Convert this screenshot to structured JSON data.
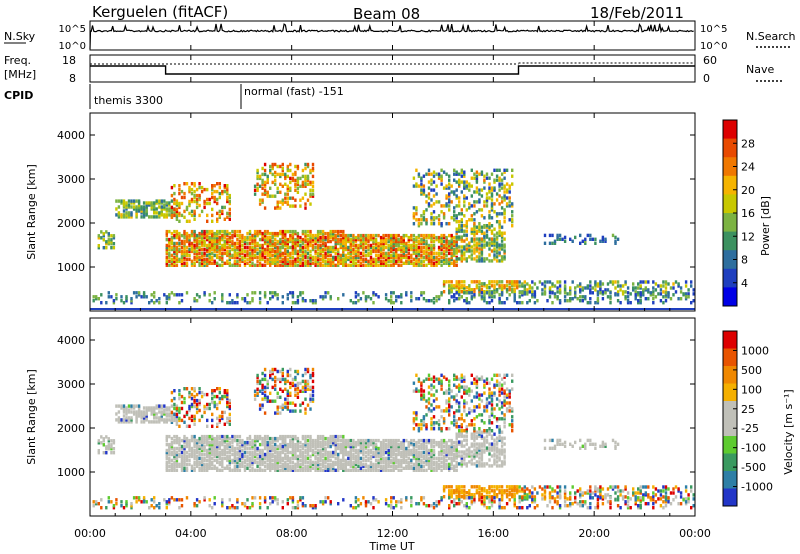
{
  "header": {
    "station": "Kerguelen (fitACF)",
    "beam": "Beam 08",
    "date": "18/Feb/2011"
  },
  "noise_panel": {
    "label": "N.Sky",
    "left_ticks": [
      "10^5",
      "10^0"
    ],
    "right_ticks": [
      "10^5",
      "10^0"
    ],
    "right_label": "N.Search"
  },
  "freq_panel": {
    "label_line1": "Freq.",
    "label_line2": "[MHz]",
    "left_ticks": [
      "18",
      "8"
    ],
    "right_ticks": [
      "60",
      "0"
    ],
    "right_label": "Nave"
  },
  "cpid_panel": {
    "label": "CPID",
    "modes": [
      {
        "name": "themis 3300",
        "start_hour": 0,
        "end_hour": 6
      },
      {
        "name": "normal (fast) -151",
        "start_hour": 6,
        "end_hour": 24
      }
    ]
  },
  "x_axis": {
    "label": "Time UT",
    "ticks": [
      "00:00",
      "04:00",
      "08:00",
      "12:00",
      "16:00",
      "20:00",
      "00:00"
    ]
  },
  "chart_data": [
    {
      "type": "heatmap",
      "ylabel": "Slant Range [km]",
      "yticks": [
        "1000",
        "2000",
        "3000",
        "4000"
      ],
      "ylim": [
        0,
        4500
      ],
      "xlim": [
        0,
        24
      ],
      "colorbar": {
        "label": "Power [dB]",
        "ticks": [
          "4",
          "8",
          "12",
          "16",
          "20",
          "24",
          "28"
        ],
        "range": [
          0,
          32
        ],
        "colors": [
          "#0000e6",
          "#1f3fbf",
          "#2e6e9e",
          "#3c9160",
          "#7cb342",
          "#c8c800",
          "#f5b400",
          "#f07800",
          "#e84a00",
          "#dd0000"
        ]
      }
    },
    {
      "type": "heatmap",
      "ylabel": "Slant Range [km]",
      "yticks": [
        "1000",
        "2000",
        "3000",
        "4000"
      ],
      "ylim": [
        0,
        4500
      ],
      "xlim": [
        0,
        24
      ],
      "colorbar": {
        "label": "Velocity [m s⁻¹]",
        "ticks": [
          "1000",
          "500",
          "100",
          "25",
          "-25",
          "-100",
          "-500",
          "-1000"
        ],
        "colors": [
          "#2236c8",
          "#2e7fa6",
          "#3a9a60",
          "#5ecb30",
          "#c0c0b8",
          "#c0c0b8",
          "#f5b000",
          "#f08800",
          "#e85400",
          "#dd0000"
        ]
      }
    }
  ]
}
